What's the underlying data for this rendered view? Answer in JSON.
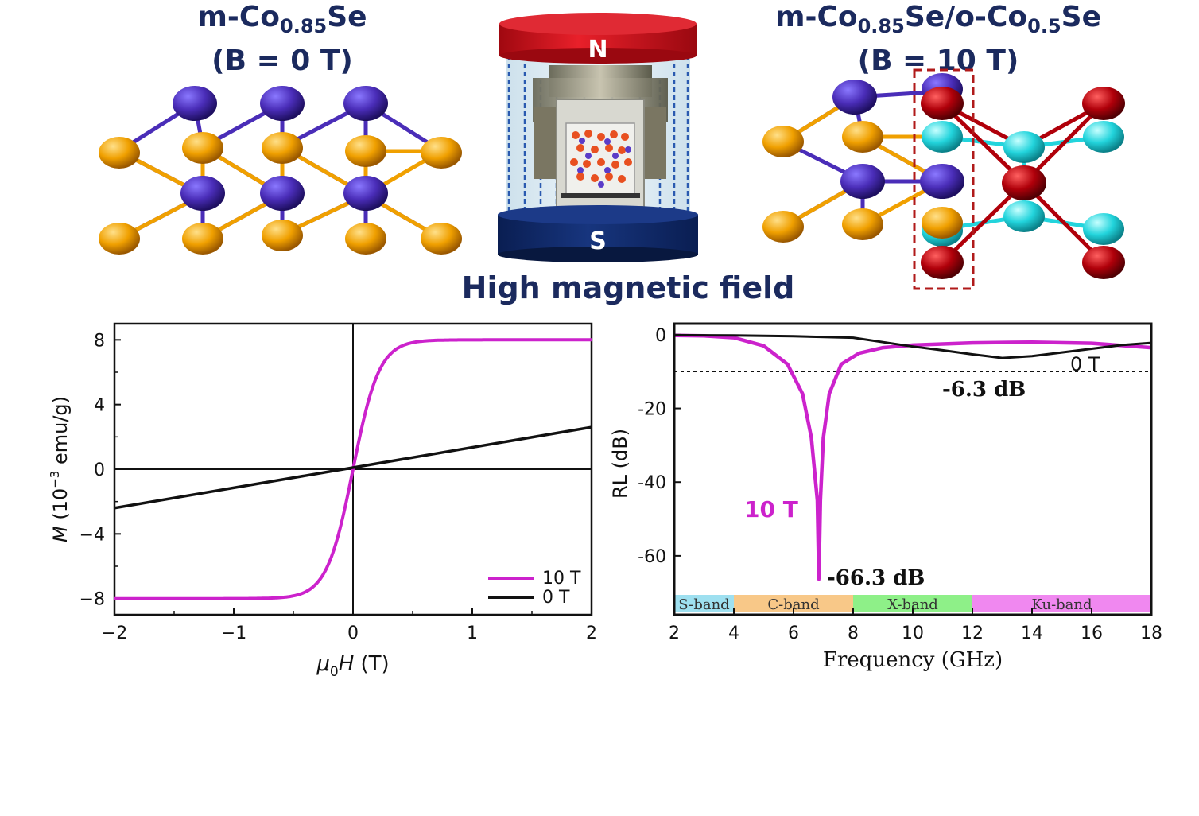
{
  "header": {
    "left_title_main": "m-Co",
    "left_title_sub": "0.85",
    "left_title_tail": "Se",
    "left_field": "(B = 0 T)",
    "right_title_a": "m-Co",
    "right_title_a_sub": "0.85",
    "right_title_b": "Se/o-Co",
    "right_title_b_sub": "0.5",
    "right_title_c": "Se",
    "right_field": "(B = 10 T)",
    "magnet_north": "N",
    "magnet_south": "S",
    "center_caption": "High magnetic field"
  },
  "colors": {
    "navy": "#1b2a5e",
    "co_purple": "#4a2db8",
    "se_orange": "#f0a000",
    "cyan": "#22d4dc",
    "dark_red": "#b0000a",
    "magenta": "#cc22cc",
    "magnet_red": "#d8141e",
    "magnet_blue": "#0e2a6e"
  },
  "chart_data": [
    {
      "type": "line",
      "xlabel_symbol": "μ",
      "xlabel_sub": "0",
      "xlabel_var": "H",
      "xlabel_unit": " (T)",
      "ylabel_var": "M",
      "ylabel_unit_pre": " (10",
      "ylabel_unit_sup": "−3",
      "ylabel_unit_post": " emu/g)",
      "xlim": [
        -2,
        2
      ],
      "ylim": [
        -9,
        9
      ],
      "xticks": [
        "−2",
        "−1",
        "0",
        "1",
        "2"
      ],
      "yticks": [
        "−8",
        "−4",
        "0",
        "4",
        "8"
      ],
      "series": [
        {
          "name": "10 T",
          "color": "#cc22cc",
          "shape": "saturation",
          "saturation_value": 8.0,
          "x": [
            -2,
            -1,
            -0.5,
            -0.25,
            -0.1,
            0,
            0.1,
            0.25,
            0.5,
            1,
            2
          ],
          "y": [
            -7.95,
            -7.7,
            -6.7,
            -4.2,
            -1.7,
            0,
            1.7,
            4.2,
            6.7,
            7.7,
            7.95
          ]
        },
        {
          "name": "0 T",
          "color": "#111111",
          "x": [
            -2,
            2
          ],
          "y": [
            -2.4,
            2.6
          ]
        }
      ],
      "legend": "bottom-right"
    },
    {
      "type": "line",
      "xlabel": "Frequency (GHz)",
      "ylabel": "RL (dB)",
      "xlim": [
        2,
        18
      ],
      "ylim": [
        -76,
        3
      ],
      "xticks": [
        "2",
        "4",
        "6",
        "8",
        "10",
        "12",
        "14",
        "16",
        "18"
      ],
      "yticks": [
        "0",
        "-20",
        "-40",
        "-60"
      ],
      "reference_line": -10,
      "bands": [
        {
          "label": "S-band",
          "from": 2,
          "to": 4,
          "color": "#9ee0f0"
        },
        {
          "label": "C-band",
          "from": 4,
          "to": 8,
          "color": "#f8c888"
        },
        {
          "label": "X-band",
          "from": 8,
          "to": 12,
          "color": "#8ef088"
        },
        {
          "label": "Ku-band",
          "from": 12,
          "to": 18,
          "color": "#f088f0"
        }
      ],
      "series": [
        {
          "name": "10 T",
          "color": "#cc22cc",
          "x": [
            2,
            3,
            4,
            5,
            5.8,
            6.3,
            6.6,
            6.8,
            6.85,
            6.9,
            7.0,
            7.2,
            7.6,
            8.2,
            9,
            10,
            12,
            14,
            16,
            18
          ],
          "y": [
            -0.2,
            -0.3,
            -0.8,
            -3,
            -8,
            -16,
            -28,
            -45,
            -66.3,
            -45,
            -28,
            -16,
            -8,
            -5,
            -3.5,
            -2.8,
            -2.2,
            -2.0,
            -2.3,
            -3.5
          ]
        },
        {
          "name": "0 T",
          "color": "#111111",
          "x": [
            2,
            4,
            6,
            8,
            9,
            10,
            11,
            12,
            12.5,
            13,
            14,
            15,
            16,
            17,
            18
          ],
          "y": [
            -0.1,
            -0.2,
            -0.4,
            -0.8,
            -2,
            -3.2,
            -4.2,
            -5.3,
            -5.8,
            -6.3,
            -5.8,
            -4.8,
            -3.8,
            -2.8,
            -2.2
          ]
        }
      ],
      "annotations": [
        "-66.3 dB",
        "-6.3 dB"
      ],
      "series_labels": [
        "10 T",
        "0 T"
      ]
    }
  ]
}
